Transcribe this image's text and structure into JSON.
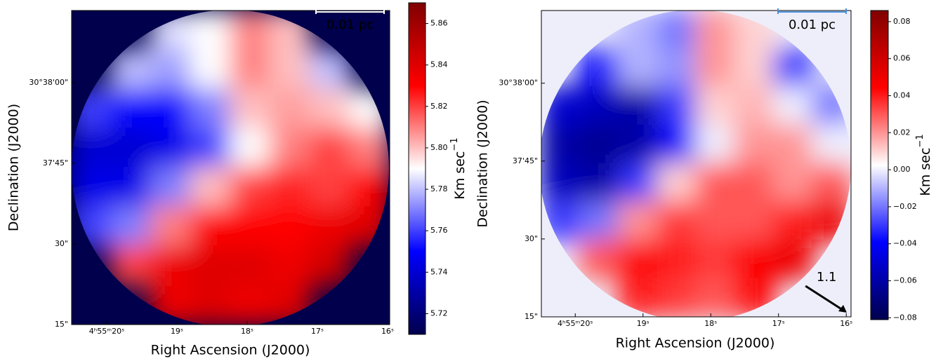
{
  "chart_data": [
    {
      "type": "heatmap",
      "colormap": "seismic",
      "background": "#00004c",
      "x_label": "Right Ascension (J2000)",
      "y_label": "Declination (J2000)",
      "xlim": [
        20.5,
        15.97
      ],
      "ylim": [
        15,
        73.4
      ],
      "xticks": [
        {
          "value": 20,
          "label": "4ʰ55ᵐ20ˢ"
        },
        {
          "value": 19,
          "label": "19ˢ"
        },
        {
          "value": 18,
          "label": "18ˢ"
        },
        {
          "value": 17,
          "label": "17ˢ"
        },
        {
          "value": 16,
          "label": "16ˢ"
        }
      ],
      "yticks": [
        {
          "value": 15,
          "label": "15\""
        },
        {
          "value": 30,
          "label": "30\""
        },
        {
          "value": 45,
          "label": "37'45\""
        },
        {
          "value": 60,
          "label": "30°38'00\""
        }
      ],
      "z": [
        [
          null,
          null,
          5.785,
          5.79,
          5.81,
          5.8,
          null,
          null
        ],
        [
          null,
          5.78,
          5.775,
          5.79,
          5.81,
          5.8,
          5.78,
          null
        ],
        [
          5.76,
          5.75,
          5.75,
          5.77,
          5.8,
          5.805,
          5.8,
          5.79
        ],
        [
          5.74,
          5.74,
          5.745,
          5.76,
          5.79,
          5.81,
          5.82,
          5.81
        ],
        [
          5.745,
          5.745,
          5.77,
          5.8,
          5.82,
          5.825,
          5.82,
          5.83
        ],
        [
          5.76,
          5.77,
          5.81,
          5.83,
          5.83,
          5.83,
          5.835,
          5.84
        ],
        [
          null,
          5.82,
          5.835,
          5.84,
          5.84,
          5.835,
          5.845,
          null
        ],
        [
          null,
          null,
          5.835,
          5.84,
          5.835,
          5.84,
          null,
          null
        ]
      ],
      "clim": [
        5.71,
        5.87
      ],
      "cticks": [
        5.72,
        5.74,
        5.76,
        5.78,
        {
          "value": 5.8,
          "label": "5.80"
        },
        5.82,
        5.84,
        5.86
      ],
      "colorbar_label": "Km sec",
      "colorbar_label_exponent": "−1",
      "scale_bar": "0.01 pc",
      "scale_bar_color": "#ffffff"
    },
    {
      "type": "heatmap",
      "colormap": "seismic",
      "background": "#eeeefa",
      "x_label": "Right Ascension (J2000)",
      "y_label": "Declination (J2000)",
      "xlim": [
        20.5,
        15.93
      ],
      "ylim": [
        15,
        74
      ],
      "xticks": [
        {
          "value": 20,
          "label": "4ʰ55ᵐ20ˢ"
        },
        {
          "value": 19,
          "label": "19ˢ"
        },
        {
          "value": 18,
          "label": "18ˢ"
        },
        {
          "value": 17,
          "label": "17ˢ"
        },
        {
          "value": 16,
          "label": "16ˢ"
        }
      ],
      "yticks": [
        {
          "value": 15,
          "label": "15\""
        },
        {
          "value": 30,
          "label": "30\""
        },
        {
          "value": 45,
          "label": "37'45\""
        },
        {
          "value": 60,
          "label": "30°38'00\""
        }
      ],
      "z": [
        [
          null,
          null,
          -0.01,
          -0.02,
          0.02,
          0.01,
          null,
          null
        ],
        [
          null,
          -0.04,
          -0.01,
          -0.015,
          0.02,
          0.01,
          -0.03,
          null
        ],
        [
          -0.05,
          -0.055,
          -0.06,
          -0.03,
          0.01,
          0.015,
          0.0,
          -0.02
        ],
        [
          -0.06,
          -0.065,
          -0.06,
          -0.04,
          0.0,
          0.02,
          0.02,
          0.0
        ],
        [
          -0.055,
          -0.06,
          -0.03,
          0.01,
          0.03,
          0.03,
          0.02,
          0.03
        ],
        [
          -0.03,
          -0.02,
          0.02,
          0.035,
          0.03,
          0.03,
          0.04,
          0.05
        ],
        [
          null,
          0.03,
          0.045,
          0.04,
          0.035,
          0.045,
          0.05,
          null
        ],
        [
          null,
          null,
          0.04,
          0.035,
          0.03,
          0.045,
          null,
          null
        ]
      ],
      "clim": [
        -0.081,
        0.086
      ],
      "cticks": [
        {
          "value": -0.08,
          "label": "−0.08"
        },
        {
          "value": -0.06,
          "label": "−0.06"
        },
        {
          "value": -0.04,
          "label": "−0.04"
        },
        {
          "value": -0.02,
          "label": "−0.02"
        },
        {
          "value": 0,
          "label": "0.00"
        },
        0.02,
        0.04,
        0.06,
        0.08
      ],
      "colorbar_label": "Km sec",
      "colorbar_label_exponent": "−1",
      "scale_bar": "0.01 pc",
      "scale_bar_color": "#4a90d9",
      "reference_vector": 1.1
    }
  ]
}
